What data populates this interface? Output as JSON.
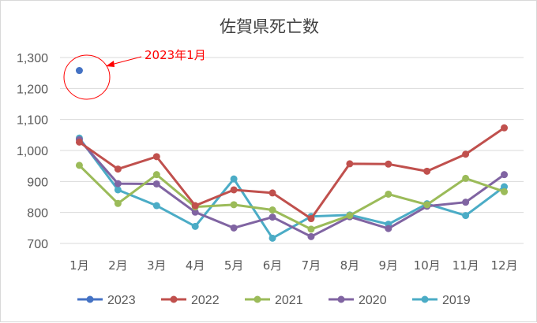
{
  "chart_data": {
    "type": "line",
    "title": "佐賀県死亡数",
    "xlabel": "",
    "ylabel": "",
    "categories": [
      "1月",
      "2月",
      "3月",
      "4月",
      "5月",
      "6月",
      "7月",
      "8月",
      "9月",
      "10月",
      "11月",
      "12月"
    ],
    "ylim": [
      700,
      1300
    ],
    "yticks": [
      700,
      800,
      900,
      1000,
      1100,
      1200,
      1300
    ],
    "ytick_labels": [
      "700",
      "800",
      "900",
      "1,000",
      "1,100",
      "1,200",
      "1,300"
    ],
    "grid": true,
    "legend_position": "bottom",
    "series": [
      {
        "name": "2023",
        "color": "#4472c4",
        "values": [
          1258,
          null,
          null,
          null,
          null,
          null,
          null,
          null,
          null,
          null,
          null,
          null
        ]
      },
      {
        "name": "2022",
        "color": "#c0504d",
        "values": [
          1027,
          940,
          980,
          822,
          873,
          863,
          780,
          957,
          956,
          933,
          988,
          1073
        ]
      },
      {
        "name": "2021",
        "color": "#9bbb59",
        "values": [
          952,
          829,
          922,
          818,
          825,
          808,
          746,
          790,
          859,
          825,
          910,
          867
        ]
      },
      {
        "name": "2020",
        "color": "#8064a2",
        "values": [
          1035,
          893,
          892,
          801,
          750,
          785,
          722,
          786,
          748,
          820,
          833,
          922
        ]
      },
      {
        "name": "2019",
        "color": "#4bacc6",
        "values": [
          1040,
          873,
          822,
          755,
          908,
          717,
          787,
          792,
          762,
          828,
          790,
          883
        ]
      }
    ],
    "annotation": {
      "text": "2023年1月",
      "color": "#ff0000"
    }
  }
}
